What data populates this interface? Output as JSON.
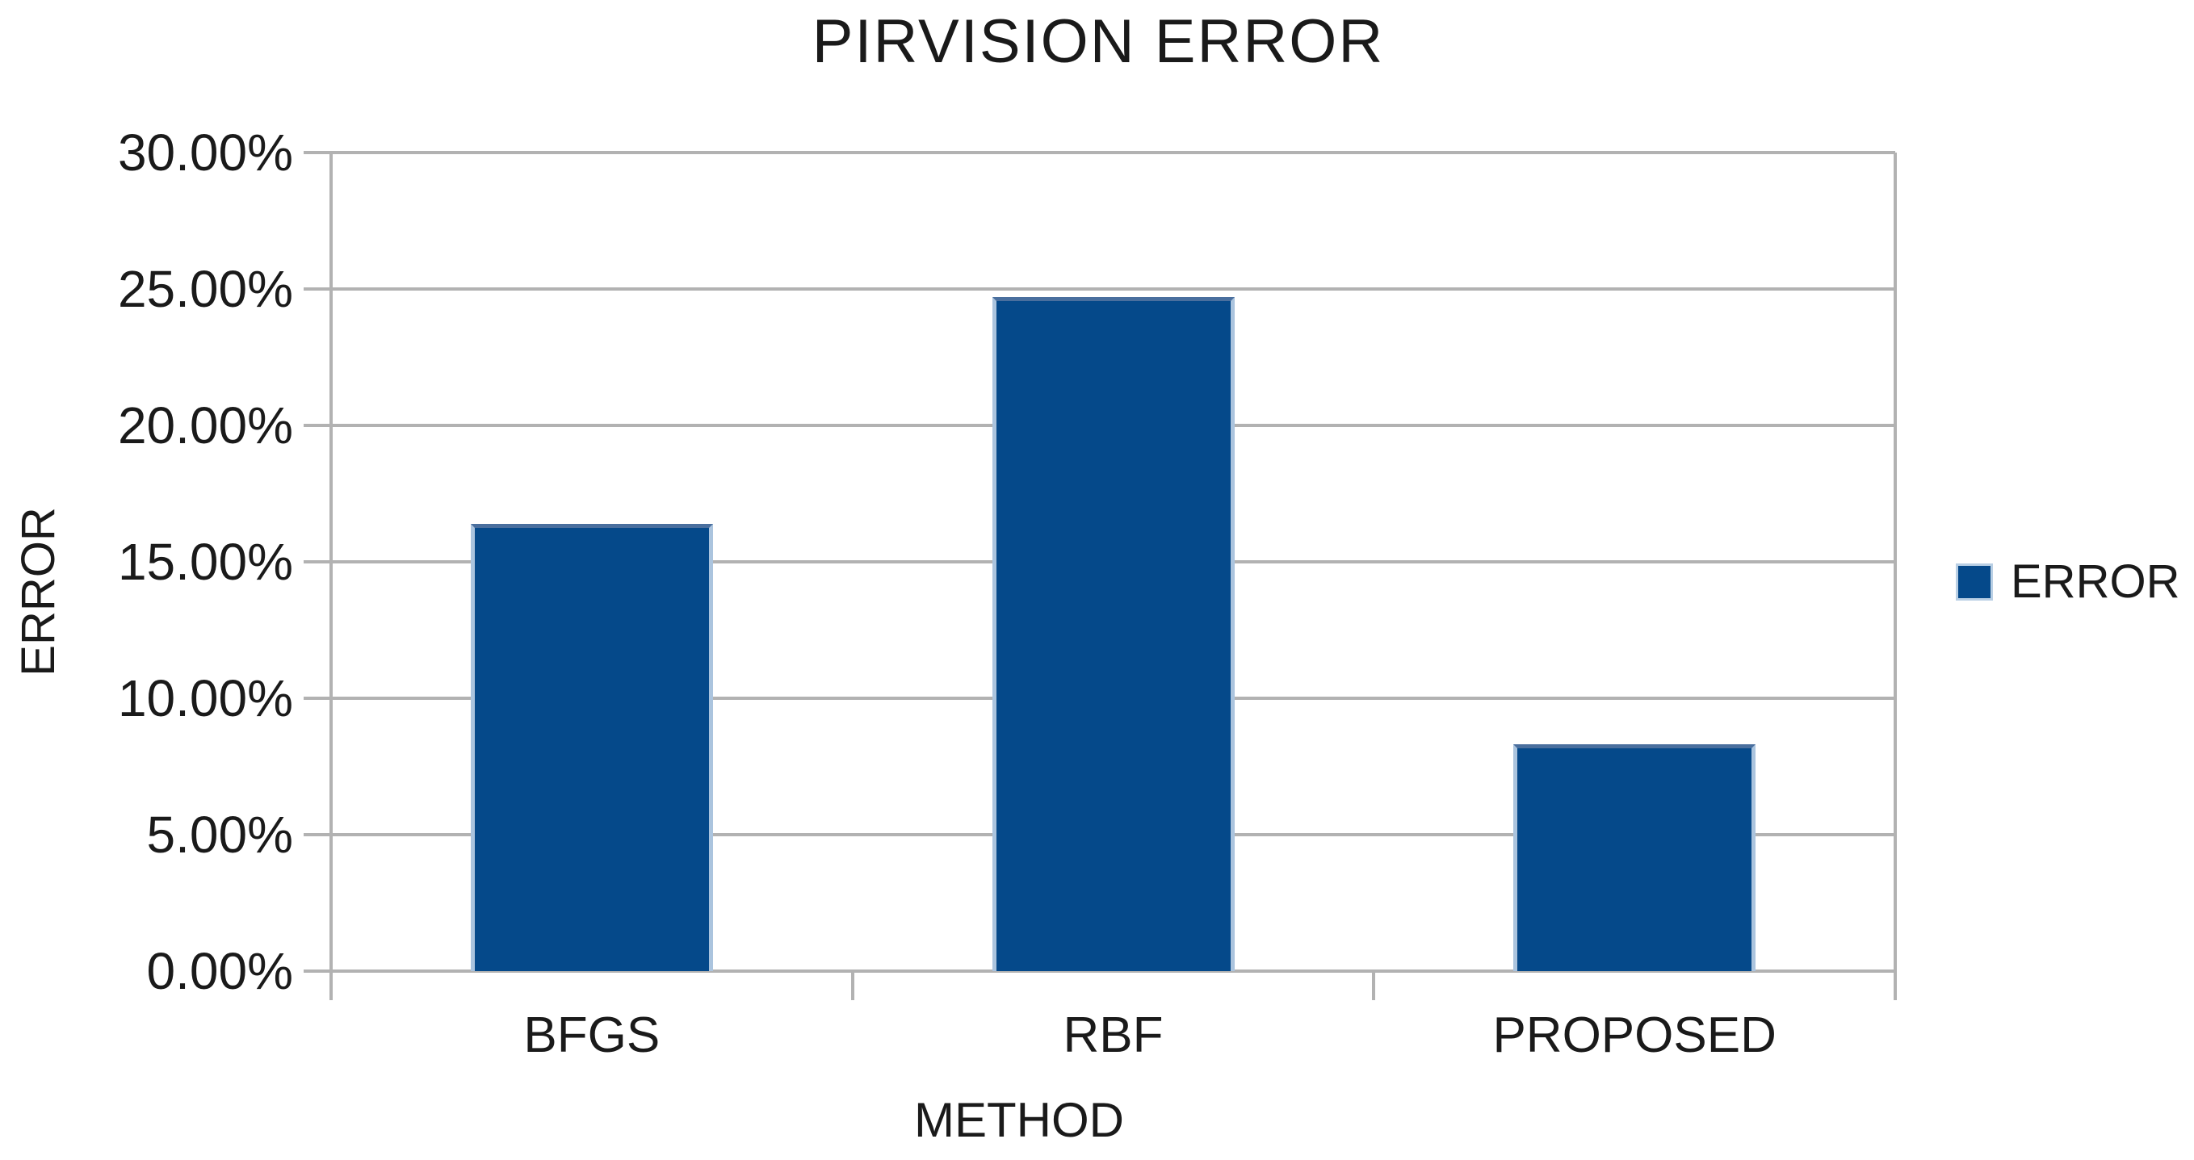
{
  "chart_data": {
    "type": "bar",
    "title": "PIRVISION ERROR",
    "categories": [
      "BFGS",
      "RBF",
      "PROPOSED"
    ],
    "series": [
      {
        "name": "ERROR",
        "values": [
          16.4,
          24.7,
          8.3
        ]
      }
    ],
    "value_unit": "%",
    "xlabel": "METHOD",
    "ylabel": "ERROR",
    "ylim": [
      0,
      30
    ],
    "y_ticks": [
      {
        "value": 30,
        "label": "30.00%"
      },
      {
        "value": 25,
        "label": "25.00%"
      },
      {
        "value": 20,
        "label": "20.00%"
      },
      {
        "value": 15,
        "label": "15.00%"
      },
      {
        "value": 10,
        "label": "10.00%"
      },
      {
        "value": 5,
        "label": "5.00%"
      },
      {
        "value": 0,
        "label": "0.00%"
      }
    ],
    "grid": "horizontal",
    "legend": {
      "position": "right",
      "label": "ERROR"
    },
    "colors": {
      "bar": "#05498a",
      "bar_edge_top": "#4a6f9e",
      "bar_edge_side": "#abc4de",
      "grid": "#b2b2b2",
      "text": "#1a1a1a",
      "background": "#ffffff"
    }
  }
}
